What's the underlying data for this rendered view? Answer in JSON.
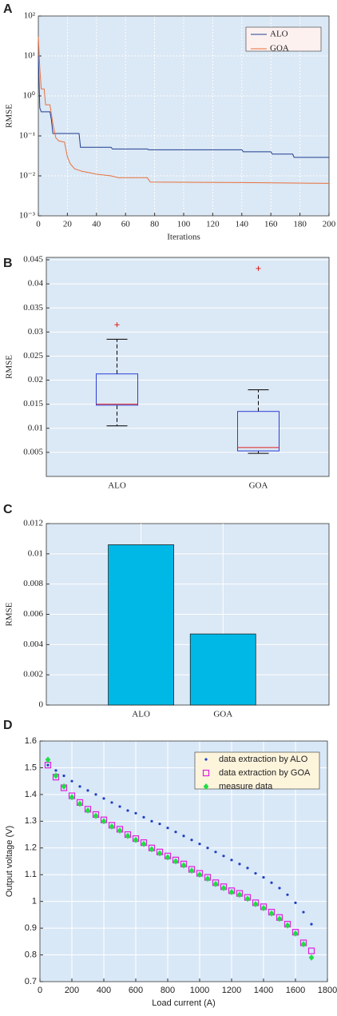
{
  "chart_data": [
    {
      "type": "line",
      "panel_label": "A",
      "xlabel": "Iterations",
      "ylabel": "RMSE",
      "log_y": true,
      "grid": true,
      "legend": "upper right",
      "xlim": [
        0,
        200
      ],
      "xticks": [
        0,
        20,
        40,
        60,
        80,
        100,
        120,
        140,
        160,
        180,
        200
      ],
      "ylim": [
        0.001,
        100
      ],
      "yticks": [
        {
          "value": 0.001,
          "label": "10⁻³"
        },
        {
          "value": 0.01,
          "label": "10⁻²"
        },
        {
          "value": 0.1,
          "label": "10⁻¹"
        },
        {
          "value": 1,
          "label": "10⁰"
        },
        {
          "value": 10,
          "label": "10¹"
        },
        {
          "value": 100,
          "label": "10²"
        }
      ],
      "series": [
        {
          "name": "ALO",
          "color": "#1f3d8f",
          "x": [
            0,
            1,
            2,
            8,
            9,
            10,
            28,
            29,
            50,
            51,
            75,
            76,
            140,
            141,
            160,
            161,
            175,
            176,
            200
          ],
          "values": [
            10,
            0.5,
            0.4,
            0.4,
            0.25,
            0.115,
            0.115,
            0.052,
            0.052,
            0.047,
            0.047,
            0.045,
            0.045,
            0.04,
            0.04,
            0.035,
            0.035,
            0.029,
            0.029
          ]
        },
        {
          "name": "GOA",
          "color": "#e8703a",
          "x": [
            0,
            1,
            2,
            4,
            5,
            8,
            10,
            12,
            14,
            18,
            20,
            22,
            25,
            30,
            35,
            40,
            50,
            55,
            75,
            77,
            140,
            200
          ],
          "values": [
            30,
            5,
            1.5,
            1.5,
            0.6,
            0.6,
            0.2,
            0.09,
            0.075,
            0.07,
            0.03,
            0.02,
            0.015,
            0.013,
            0.012,
            0.011,
            0.01,
            0.009,
            0.009,
            0.007,
            0.0068,
            0.0065
          ]
        }
      ]
    },
    {
      "type": "box",
      "panel_label": "B",
      "ylabel": "RMSE",
      "grid": true,
      "categories": [
        "ALO",
        "GOA"
      ],
      "ylim": [
        0,
        0.0455
      ],
      "yticks": [
        0.005,
        0.01,
        0.015,
        0.02,
        0.025,
        0.03,
        0.035,
        0.04,
        0.045
      ],
      "boxes": [
        {
          "whislo": 0.0105,
          "q1": 0.0148,
          "med": 0.015,
          "q3": 0.0213,
          "whishi": 0.0285,
          "fliers": [
            0.0315
          ]
        },
        {
          "whislo": 0.0048,
          "q1": 0.0053,
          "med": 0.006,
          "q3": 0.0135,
          "whishi": 0.018,
          "fliers": [
            0.0432
          ]
        }
      ]
    },
    {
      "type": "bar",
      "panel_label": "C",
      "ylabel": "RMSE",
      "grid": true,
      "color": "#00b8e6",
      "categories": [
        "ALO",
        "GOA"
      ],
      "values": [
        0.0106,
        0.0047
      ],
      "ylim": [
        0,
        0.012
      ],
      "yticks": [
        0,
        0.002,
        0.004,
        0.006,
        0.008,
        0.01,
        0.012
      ]
    },
    {
      "type": "scatter",
      "panel_label": "D",
      "xlabel": "Load current (A)",
      "ylabel": "Output voltage (V)",
      "grid": true,
      "legend": "upper right",
      "xlim": [
        0,
        1800
      ],
      "xticks": [
        0,
        200,
        400,
        600,
        800,
        1000,
        1200,
        1400,
        1600,
        1800
      ],
      "ylim": [
        0.7,
        1.6
      ],
      "yticks": [
        0.7,
        0.8,
        0.9,
        1,
        1.1,
        1.2,
        1.3,
        1.4,
        1.5,
        1.6
      ],
      "x": [
        50,
        100,
        150,
        200,
        250,
        300,
        350,
        400,
        450,
        500,
        550,
        600,
        650,
        700,
        750,
        800,
        850,
        900,
        950,
        1000,
        1050,
        1100,
        1150,
        1200,
        1250,
        1300,
        1350,
        1400,
        1450,
        1500,
        1550,
        1600,
        1650,
        1700
      ],
      "series": [
        {
          "name": "data extraction by ALO",
          "color": "#1f3fc8",
          "marker": "dot",
          "values": [
            1.51,
            1.49,
            1.47,
            1.45,
            1.43,
            1.415,
            1.4,
            1.385,
            1.37,
            1.355,
            1.34,
            1.33,
            1.315,
            1.3,
            1.29,
            1.275,
            1.26,
            1.245,
            1.23,
            1.215,
            1.2,
            1.185,
            1.17,
            1.155,
            1.14,
            1.125,
            1.105,
            1.09,
            1.07,
            1.05,
            1.025,
            0.995,
            0.96,
            0.915
          ]
        },
        {
          "name": "data extraction by GOA",
          "color": "#e020e0",
          "marker": "square",
          "values": [
            1.51,
            1.465,
            1.425,
            1.395,
            1.37,
            1.345,
            1.325,
            1.305,
            1.285,
            1.27,
            1.25,
            1.235,
            1.22,
            1.2,
            1.185,
            1.17,
            1.155,
            1.14,
            1.12,
            1.105,
            1.09,
            1.07,
            1.055,
            1.04,
            1.03,
            1.015,
            0.995,
            0.98,
            0.96,
            0.94,
            0.915,
            0.885,
            0.845,
            0.815
          ]
        },
        {
          "name": "measure data",
          "color": "#22dd44",
          "marker": "diamond",
          "values": [
            1.53,
            1.47,
            1.43,
            1.39,
            1.365,
            1.34,
            1.32,
            1.3,
            1.28,
            1.265,
            1.245,
            1.23,
            1.215,
            1.195,
            1.18,
            1.165,
            1.15,
            1.135,
            1.115,
            1.1,
            1.085,
            1.065,
            1.05,
            1.035,
            1.025,
            1.01,
            0.99,
            0.975,
            0.955,
            0.935,
            0.91,
            0.88,
            0.84,
            0.79
          ]
        }
      ]
    }
  ]
}
